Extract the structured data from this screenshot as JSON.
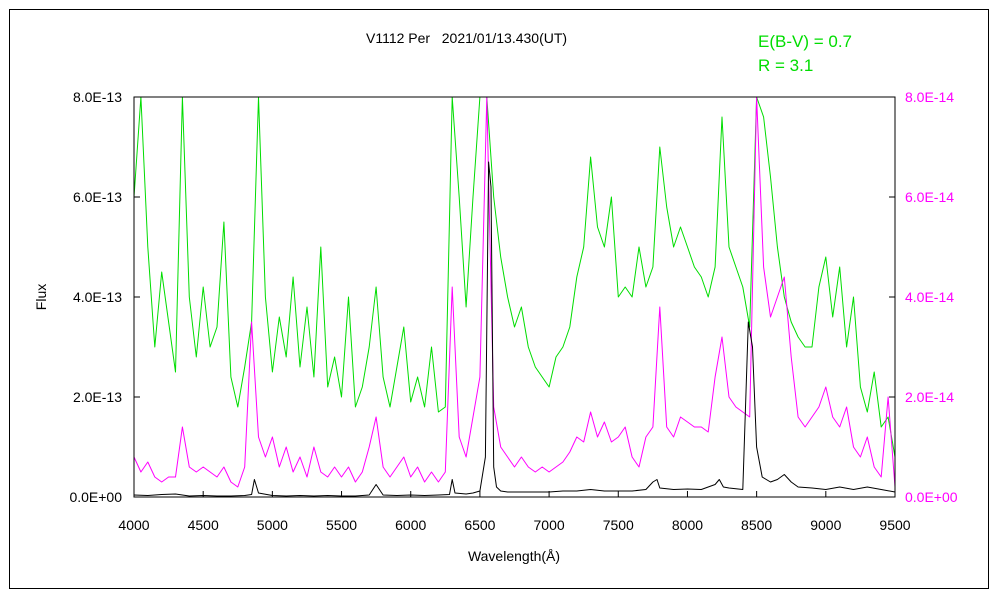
{
  "chart_data": {
    "type": "line",
    "title": "V1112 Per   2021/01/13.430(UT)",
    "annotations": [
      "E(B-V) = 0.7",
      "R = 3.1"
    ],
    "xlabel": "Wavelength(Å)",
    "ylabel": "Flux",
    "xlim": [
      4000,
      9500
    ],
    "ylim_left": [
      0,
      8e-13
    ],
    "ylim_right": [
      0,
      8e-14
    ],
    "x_ticks": [
      "4000",
      "4500",
      "5000",
      "5500",
      "6000",
      "6500",
      "7000",
      "7500",
      "8000",
      "8500",
      "9000",
      "9500"
    ],
    "y_ticks_left": [
      "0.0E+00",
      "2.0E-13",
      "4.0E-13",
      "6.0E-13",
      "8.0E-13"
    ],
    "y_ticks_right": [
      "0.0E+00",
      "2.0E-14",
      "4.0E-14",
      "6.0E-14",
      "8.0E-14"
    ],
    "grid": false,
    "colors": {
      "green": "#00dd00",
      "magenta": "#ff00ff",
      "black": "#000000"
    },
    "series": [
      {
        "axis": "left",
        "color": "#00dd00",
        "x": [
          4000,
          4050,
          4100,
          4150,
          4200,
          4250,
          4300,
          4350,
          4400,
          4450,
          4500,
          4550,
          4600,
          4650,
          4700,
          4750,
          4800,
          4850,
          4900,
          4950,
          5000,
          5050,
          5100,
          5150,
          5200,
          5250,
          5300,
          5350,
          5400,
          5450,
          5500,
          5550,
          5600,
          5650,
          5700,
          5750,
          5800,
          5850,
          5900,
          5950,
          6000,
          6050,
          6100,
          6150,
          6200,
          6250,
          6300,
          6350,
          6400,
          6450,
          6500,
          6550,
          6600,
          6650,
          6700,
          6750,
          6800,
          6850,
          6900,
          6950,
          7000,
          7050,
          7100,
          7150,
          7200,
          7250,
          7300,
          7350,
          7400,
          7450,
          7500,
          7550,
          7600,
          7650,
          7700,
          7750,
          7800,
          7850,
          7900,
          7950,
          8000,
          8050,
          8100,
          8150,
          8200,
          8250,
          8300,
          8350,
          8400,
          8450,
          8500,
          8550,
          8600,
          8650,
          8700,
          8750,
          8800,
          8850,
          8900,
          8950,
          9000,
          9050,
          9100,
          9150,
          9200,
          9250,
          9300,
          9350,
          9400,
          9450,
          9500
        ],
        "y": [
          6e-13,
          8e-13,
          5e-13,
          3e-13,
          4.5e-13,
          3.5e-13,
          2.5e-13,
          8e-13,
          4e-13,
          2.8e-13,
          4.2e-13,
          3e-13,
          3.4e-13,
          5.5e-13,
          2.4e-13,
          1.8e-13,
          2.6e-13,
          3.5e-13,
          8e-13,
          4e-13,
          2.5e-13,
          3.6e-13,
          2.8e-13,
          4.4e-13,
          2.6e-13,
          3.8e-13,
          2.4e-13,
          5e-13,
          2.2e-13,
          2.8e-13,
          2e-13,
          4e-13,
          1.8e-13,
          2.2e-13,
          3e-13,
          4.2e-13,
          2.4e-13,
          1.8e-13,
          2.6e-13,
          3.4e-13,
          1.9e-13,
          2.4e-13,
          1.8e-13,
          3e-13,
          1.7e-13,
          1.8e-13,
          8e-13,
          6e-13,
          3.8e-13,
          6e-13,
          8e-13,
          8e-13,
          6e-13,
          4.8e-13,
          4e-13,
          3.4e-13,
          3.8e-13,
          3e-13,
          2.6e-13,
          2.4e-13,
          2.2e-13,
          2.8e-13,
          3e-13,
          3.4e-13,
          4.4e-13,
          5e-13,
          6.8e-13,
          5.4e-13,
          5e-13,
          6e-13,
          4e-13,
          4.2e-13,
          4e-13,
          5e-13,
          4.2e-13,
          4.6e-13,
          7e-13,
          5.8e-13,
          5e-13,
          5.4e-13,
          5e-13,
          4.6e-13,
          4.4e-13,
          4e-13,
          4.6e-13,
          7.6e-13,
          5e-13,
          4.6e-13,
          4.2e-13,
          3.4e-13,
          8e-13,
          7.6e-13,
          6.4e-13,
          5e-13,
          4e-13,
          3.5e-13,
          3.2e-13,
          3e-13,
          3e-13,
          4.2e-13,
          4.8e-13,
          3.6e-13,
          4.6e-13,
          3e-13,
          4e-13,
          2.2e-13,
          1.7e-13,
          2.5e-13,
          1.4e-13,
          1.6e-13,
          8e-14
        ]
      },
      {
        "axis": "right",
        "color": "#ff00ff",
        "x": [
          4000,
          4050,
          4100,
          4150,
          4200,
          4250,
          4300,
          4350,
          4400,
          4450,
          4500,
          4550,
          4600,
          4650,
          4700,
          4750,
          4800,
          4850,
          4900,
          4950,
          5000,
          5050,
          5100,
          5150,
          5200,
          5250,
          5300,
          5350,
          5400,
          5450,
          5500,
          5550,
          5600,
          5650,
          5700,
          5750,
          5800,
          5850,
          5900,
          5950,
          6000,
          6050,
          6100,
          6150,
          6200,
          6250,
          6300,
          6350,
          6400,
          6450,
          6500,
          6550,
          6600,
          6650,
          6700,
          6750,
          6800,
          6850,
          6900,
          6950,
          7000,
          7050,
          7100,
          7150,
          7200,
          7250,
          7300,
          7350,
          7400,
          7450,
          7500,
          7550,
          7600,
          7650,
          7700,
          7750,
          7800,
          7850,
          7900,
          7950,
          8000,
          8050,
          8100,
          8150,
          8200,
          8250,
          8300,
          8350,
          8400,
          8450,
          8500,
          8550,
          8600,
          8650,
          8700,
          8750,
          8800,
          8850,
          8900,
          8950,
          9000,
          9050,
          9100,
          9150,
          9200,
          9250,
          9300,
          9350,
          9400,
          9450,
          9500
        ],
        "y": [
          8e-15,
          5e-15,
          7e-15,
          4e-15,
          3e-15,
          4e-15,
          4e-15,
          1.4e-14,
          6e-15,
          5e-15,
          6e-15,
          5e-15,
          4e-15,
          6e-15,
          3e-15,
          2e-15,
          6e-15,
          3.5e-14,
          1.2e-14,
          8e-15,
          1.2e-14,
          6e-15,
          1e-14,
          5e-15,
          8e-15,
          4e-15,
          1e-14,
          5e-15,
          4e-15,
          6e-15,
          4e-15,
          6e-15,
          3e-15,
          5e-15,
          1e-14,
          1.6e-14,
          6e-15,
          4e-15,
          6e-15,
          8e-15,
          4e-15,
          6e-15,
          3e-15,
          5e-15,
          3e-15,
          5e-15,
          4.2e-14,
          1.2e-14,
          8e-15,
          1.6e-14,
          2.4e-14,
          8e-14,
          1.8e-14,
          1e-14,
          8e-15,
          6e-15,
          8e-15,
          6e-15,
          5e-15,
          6e-15,
          5e-15,
          6e-15,
          7e-15,
          9e-15,
          1.2e-14,
          1.1e-14,
          1.7e-14,
          1.2e-14,
          1.5e-14,
          1.1e-14,
          1.2e-14,
          1.4e-14,
          8e-15,
          6e-15,
          1.2e-14,
          1.4e-14,
          3.8e-14,
          1.4e-14,
          1.2e-14,
          1.6e-14,
          1.5e-14,
          1.4e-14,
          1.4e-14,
          1.3e-14,
          2.4e-14,
          3.2e-14,
          2e-14,
          1.8e-14,
          1.7e-14,
          1.6e-14,
          8e-14,
          4.6e-14,
          3.6e-14,
          4e-14,
          4.4e-14,
          2.8e-14,
          1.6e-14,
          1.4e-14,
          1.6e-14,
          1.8e-14,
          2.2e-14,
          1.6e-14,
          1.4e-14,
          1.8e-14,
          1e-14,
          8e-15,
          1.2e-14,
          6e-15,
          4e-15,
          2e-14,
          2e-15
        ]
      },
      {
        "axis": "left",
        "color": "#000000",
        "x": [
          4000,
          4100,
          4200,
          4300,
          4400,
          4500,
          4600,
          4700,
          4800,
          4850,
          4870,
          4900,
          5000,
          5100,
          5200,
          5300,
          5400,
          5500,
          5600,
          5700,
          5750,
          5800,
          5900,
          6000,
          6100,
          6200,
          6280,
          6300,
          6320,
          6400,
          6450,
          6500,
          6540,
          6563,
          6580,
          6600,
          6620,
          6650,
          6700,
          6800,
          6900,
          7000,
          7100,
          7200,
          7300,
          7400,
          7500,
          7600,
          7700,
          7750,
          7780,
          7800,
          7900,
          8000,
          8100,
          8200,
          8230,
          8260,
          8300,
          8400,
          8440,
          8470,
          8500,
          8540,
          8600,
          8650,
          8700,
          8750,
          8800,
          8900,
          9000,
          9100,
          9200,
          9300,
          9400,
          9500
        ],
        "y": [
          4e-15,
          3e-15,
          5e-15,
          6e-15,
          2e-15,
          3e-15,
          2e-15,
          2e-15,
          3e-15,
          5e-15,
          3.5e-14,
          8e-15,
          3e-15,
          2e-15,
          3e-15,
          2e-15,
          3e-15,
          2e-15,
          2e-15,
          4e-15,
          2.5e-14,
          4e-15,
          3e-15,
          4e-15,
          3e-15,
          4e-15,
          5e-15,
          3.5e-14,
          8e-15,
          6e-15,
          8e-15,
          1.2e-14,
          8e-14,
          6.7e-13,
          6.2e-13,
          6e-14,
          2e-14,
          1.2e-14,
          1e-14,
          1e-14,
          1e-14,
          1e-14,
          1.2e-14,
          1.2e-14,
          1.5e-14,
          1.2e-14,
          1.2e-14,
          1.2e-14,
          1.5e-14,
          3e-14,
          3.5e-14,
          1.8e-14,
          1.5e-14,
          1.6e-14,
          1.5e-14,
          2.5e-14,
          3.5e-14,
          2e-14,
          1.8e-14,
          1.5e-14,
          3.5e-13,
          3e-13,
          1e-13,
          4e-14,
          3e-14,
          3.5e-14,
          4.5e-14,
          3e-14,
          2e-14,
          1.8e-14,
          1.5e-14,
          2e-14,
          1.5e-14,
          2e-14,
          1.5e-14,
          1e-14
        ]
      }
    ]
  }
}
